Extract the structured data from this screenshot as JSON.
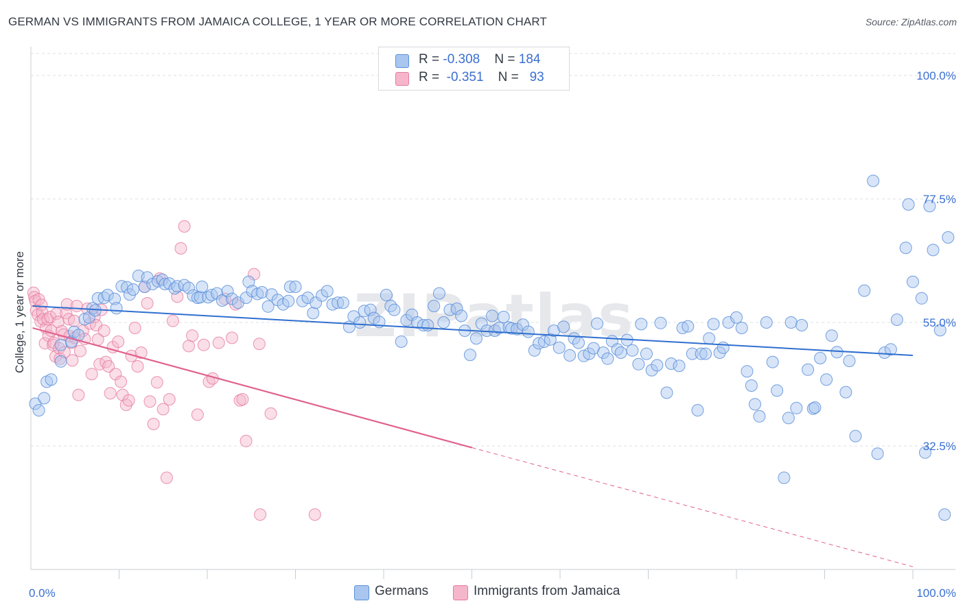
{
  "title": "GERMAN VS IMMIGRANTS FROM JAMAICA COLLEGE, 1 YEAR OR MORE CORRELATION CHART",
  "source": "Source: ZipAtlas.com",
  "watermark": "ZIPatlas",
  "colors": {
    "germans_fill": "#a9c6ef",
    "germans_stroke": "#5b8fd9",
    "germans_line": "#2f6fcf",
    "jamaica_fill": "#f5b6cb",
    "jamaica_stroke": "#e6799e",
    "jamaica_line": "#e0608d",
    "axis_label": "#3a6fd1",
    "grid": "#dcdfe4"
  },
  "legend_top": {
    "germans": {
      "r_label": "R = ",
      "r_value": "-0.308",
      "n_label": "N = ",
      "n_value": "184"
    },
    "jamaica": {
      "r_label": "R = ",
      "r_value": "-0.351",
      "n_label": "N = ",
      "n_value": "93"
    }
  },
  "legend_bottom": {
    "germans": "Germans",
    "jamaica": "Immigrants from Jamaica"
  },
  "chart_data": {
    "type": "scatter",
    "title": "GERMAN VS IMMIGRANTS FROM JAMAICA COLLEGE, 1 YEAR OR MORE CORRELATION CHART",
    "xlabel": "",
    "ylabel": "College, 1 year or more",
    "xlim": [
      0,
      100
    ],
    "ylim": [
      10,
      104
    ],
    "x_tick_labels": [
      "0.0%",
      "100.0%"
    ],
    "y_ticks": [
      32.5,
      55.0,
      77.5,
      100.0
    ],
    "y_tick_labels": [
      "32.5%",
      "55.0%",
      "77.5%",
      "100.0%"
    ],
    "grid": true,
    "legend_position": "bottom",
    "series": [
      {
        "name": "Germans",
        "R": -0.308,
        "N": 184,
        "trend": {
          "x0": 0.2,
          "y0": 58.0,
          "x1": 100,
          "y1": 49.0
        },
        "points": [
          [
            0.5,
            40.2
          ],
          [
            0.9,
            39.0
          ],
          [
            1.5,
            41.2
          ],
          [
            1.8,
            44.2
          ],
          [
            2.3,
            44.6
          ],
          [
            3.4,
            47.9
          ],
          [
            3.4,
            50.9
          ],
          [
            4.6,
            51.5
          ],
          [
            4.9,
            53.3
          ],
          [
            5.4,
            52.7
          ],
          [
            6.1,
            55.6
          ],
          [
            6.6,
            55.9
          ],
          [
            7.0,
            57.6
          ],
          [
            7.3,
            57.2
          ],
          [
            7.6,
            59.4
          ],
          [
            8.3,
            59.5
          ],
          [
            8.7,
            60.0
          ],
          [
            9.5,
            59.3
          ],
          [
            9.7,
            57.6
          ],
          [
            10.3,
            61.6
          ],
          [
            10.9,
            61.4
          ],
          [
            11.2,
            60.1
          ],
          [
            11.6,
            61.0
          ],
          [
            12.2,
            63.5
          ],
          [
            12.9,
            61.5
          ],
          [
            13.2,
            63.2
          ],
          [
            13.8,
            62.0
          ],
          [
            14.4,
            62.5
          ],
          [
            14.9,
            62.8
          ],
          [
            15.2,
            62.0
          ],
          [
            15.7,
            62.1
          ],
          [
            16.3,
            61.2
          ],
          [
            16.6,
            61.6
          ],
          [
            17.4,
            61.8
          ],
          [
            17.9,
            61.3
          ],
          [
            18.4,
            59.9
          ],
          [
            18.9,
            59.5
          ],
          [
            19.2,
            59.6
          ],
          [
            19.4,
            61.5
          ],
          [
            20.1,
            59.6
          ],
          [
            20.5,
            60.0
          ],
          [
            21.1,
            60.3
          ],
          [
            21.7,
            59.0
          ],
          [
            22.3,
            60.7
          ],
          [
            22.8,
            59.3
          ],
          [
            23.5,
            58.6
          ],
          [
            24.4,
            59.5
          ],
          [
            24.7,
            62.4
          ],
          [
            25.1,
            60.7
          ],
          [
            25.7,
            60.2
          ],
          [
            26.2,
            60.5
          ],
          [
            26.9,
            57.9
          ],
          [
            27.3,
            60.1
          ],
          [
            28.0,
            59.1
          ],
          [
            28.6,
            58.3
          ],
          [
            29.2,
            58.9
          ],
          [
            29.4,
            61.5
          ],
          [
            30.0,
            61.5
          ],
          [
            30.8,
            58.9
          ],
          [
            31.4,
            59.5
          ],
          [
            32.0,
            56.7
          ],
          [
            32.3,
            58.6
          ],
          [
            33.0,
            59.9
          ],
          [
            33.6,
            60.7
          ],
          [
            34.2,
            58.3
          ],
          [
            34.8,
            58.6
          ],
          [
            35.4,
            58.6
          ],
          [
            36.1,
            54.2
          ],
          [
            36.6,
            56.1
          ],
          [
            37.3,
            55.0
          ],
          [
            37.8,
            57.1
          ],
          [
            38.5,
            57.3
          ],
          [
            38.9,
            55.8
          ],
          [
            39.5,
            55.1
          ],
          [
            40.3,
            60.0
          ],
          [
            40.8,
            58.0
          ],
          [
            41.2,
            57.3
          ],
          [
            42.0,
            51.5
          ],
          [
            42.6,
            55.4
          ],
          [
            43.2,
            56.4
          ],
          [
            43.8,
            55.0
          ],
          [
            44.5,
            54.5
          ],
          [
            45.0,
            54.5
          ],
          [
            45.7,
            58.0
          ],
          [
            46.3,
            60.3
          ],
          [
            46.8,
            55.0
          ],
          [
            47.5,
            57.3
          ],
          [
            48.3,
            57.5
          ],
          [
            48.8,
            56.2
          ],
          [
            49.2,
            53.5
          ],
          [
            49.8,
            49.1
          ],
          [
            50.5,
            52.1
          ],
          [
            51.1,
            54.8
          ],
          [
            51.7,
            53.5
          ],
          [
            52.3,
            56.2
          ],
          [
            52.6,
            53.5
          ],
          [
            53.1,
            54.0
          ],
          [
            53.6,
            56.0
          ],
          [
            54.2,
            54.1
          ],
          [
            54.5,
            53.9
          ],
          [
            55.1,
            53.8
          ],
          [
            55.8,
            54.6
          ],
          [
            56.4,
            53.3
          ],
          [
            57.1,
            49.9
          ],
          [
            57.6,
            51.2
          ],
          [
            58.2,
            51.5
          ],
          [
            58.9,
            51.9
          ],
          [
            59.3,
            53.5
          ],
          [
            59.9,
            50.4
          ],
          [
            60.4,
            54.2
          ],
          [
            61.1,
            49.0
          ],
          [
            61.6,
            52.1
          ],
          [
            62.1,
            51.3
          ],
          [
            62.7,
            48.9
          ],
          [
            63.3,
            49.3
          ],
          [
            63.8,
            50.3
          ],
          [
            64.2,
            54.8
          ],
          [
            64.9,
            49.5
          ],
          [
            65.4,
            48.4
          ],
          [
            65.9,
            51.6
          ],
          [
            66.5,
            50.1
          ],
          [
            66.9,
            49.5
          ],
          [
            67.6,
            51.8
          ],
          [
            68.2,
            49.9
          ],
          [
            68.9,
            47.4
          ],
          [
            69.2,
            54.7
          ],
          [
            69.8,
            49.3
          ],
          [
            70.4,
            46.3
          ],
          [
            71.0,
            47.2
          ],
          [
            71.4,
            54.9
          ],
          [
            72.1,
            42.2
          ],
          [
            72.6,
            47.5
          ],
          [
            73.5,
            47.1
          ],
          [
            73.9,
            54.0
          ],
          [
            74.5,
            54.3
          ],
          [
            75.0,
            49.3
          ],
          [
            75.6,
            39.0
          ],
          [
            76.0,
            49.3
          ],
          [
            76.5,
            49.3
          ],
          [
            76.9,
            52.1
          ],
          [
            77.4,
            54.7
          ],
          [
            78.1,
            49.5
          ],
          [
            78.5,
            50.4
          ],
          [
            79.1,
            55.0
          ],
          [
            80.0,
            55.9
          ],
          [
            80.6,
            54.0
          ],
          [
            81.2,
            46.1
          ],
          [
            81.7,
            43.5
          ],
          [
            82.1,
            40.1
          ],
          [
            82.6,
            37.9
          ],
          [
            83.4,
            55.0
          ],
          [
            84.1,
            47.8
          ],
          [
            84.6,
            42.6
          ],
          [
            85.4,
            26.7
          ],
          [
            85.9,
            37.6
          ],
          [
            86.2,
            55.0
          ],
          [
            86.8,
            39.4
          ],
          [
            87.4,
            54.5
          ],
          [
            88.1,
            46.4
          ],
          [
            88.7,
            39.3
          ],
          [
            88.9,
            39.5
          ],
          [
            89.5,
            48.5
          ],
          [
            90.2,
            44.6
          ],
          [
            90.8,
            52.6
          ],
          [
            91.4,
            49.6
          ],
          [
            92.4,
            42.3
          ],
          [
            92.8,
            48.0
          ],
          [
            93.5,
            34.3
          ],
          [
            94.5,
            60.8
          ],
          [
            95.5,
            80.8
          ],
          [
            96.0,
            31.1
          ],
          [
            96.8,
            49.5
          ],
          [
            97.5,
            50.1
          ],
          [
            98.2,
            55.5
          ],
          [
            99.2,
            68.6
          ],
          [
            99.5,
            76.5
          ],
          [
            100.0,
            62.4
          ],
          [
            101.0,
            59.4
          ],
          [
            101.4,
            31.3
          ],
          [
            101.9,
            76.2
          ],
          [
            102.3,
            68.2
          ],
          [
            103.1,
            53.6
          ],
          [
            103.6,
            20.0
          ],
          [
            104.0,
            70.5
          ]
        ]
      },
      {
        "name": "Immigrants from Jamaica",
        "R": -0.351,
        "N": 93,
        "trend": {
          "x0": 0.2,
          "y0": 54.0,
          "x1": 50,
          "y1": 32.2,
          "dashed_to": {
            "x": 100,
            "y": 10.5
          }
        },
        "points": [
          [
            0.3,
            60.4
          ],
          [
            0.4,
            59.6
          ],
          [
            0.5,
            58.9
          ],
          [
            0.6,
            57.2
          ],
          [
            0.8,
            56.4
          ],
          [
            0.9,
            59.2
          ],
          [
            1.1,
            55.2
          ],
          [
            1.2,
            58.2
          ],
          [
            1.3,
            56.8
          ],
          [
            1.4,
            55.6
          ],
          [
            1.6,
            51.2
          ],
          [
            1.7,
            54.0
          ],
          [
            1.9,
            55.6
          ],
          [
            2.0,
            52.6
          ],
          [
            2.2,
            56.0
          ],
          [
            2.3,
            53.5
          ],
          [
            2.5,
            50.9
          ],
          [
            2.6,
            51.3
          ],
          [
            2.8,
            48.8
          ],
          [
            2.9,
            56.6
          ],
          [
            3.1,
            55.1
          ],
          [
            3.2,
            50.3
          ],
          [
            3.3,
            48.4
          ],
          [
            3.5,
            53.4
          ],
          [
            3.7,
            52.8
          ],
          [
            3.8,
            49.6
          ],
          [
            4.0,
            56.7
          ],
          [
            4.1,
            58.3
          ],
          [
            4.3,
            55.6
          ],
          [
            4.4,
            52.5
          ],
          [
            4.6,
            51.3
          ],
          [
            4.7,
            48.1
          ],
          [
            4.9,
            55.3
          ],
          [
            5.0,
            52.2
          ],
          [
            5.2,
            58.0
          ],
          [
            5.4,
            41.8
          ],
          [
            5.6,
            49.8
          ],
          [
            5.9,
            53.5
          ],
          [
            6.1,
            52.0
          ],
          [
            6.4,
            57.5
          ],
          [
            6.7,
            54.8
          ],
          [
            6.9,
            45.6
          ],
          [
            7.2,
            56.0
          ],
          [
            7.4,
            54.5
          ],
          [
            7.6,
            51.9
          ],
          [
            7.8,
            47.4
          ],
          [
            8.0,
            57.3
          ],
          [
            8.3,
            53.5
          ],
          [
            8.5,
            47.8
          ],
          [
            8.8,
            47.0
          ],
          [
            9.0,
            42.1
          ],
          [
            9.3,
            50.5
          ],
          [
            9.6,
            45.6
          ],
          [
            9.9,
            51.5
          ],
          [
            10.2,
            44.2
          ],
          [
            10.4,
            41.8
          ],
          [
            10.8,
            40.0
          ],
          [
            11.1,
            40.8
          ],
          [
            11.4,
            48.9
          ],
          [
            11.8,
            54.0
          ],
          [
            12.1,
            47.0
          ],
          [
            12.5,
            49.5
          ],
          [
            12.9,
            61.5
          ],
          [
            13.2,
            58.5
          ],
          [
            13.5,
            40.6
          ],
          [
            13.9,
            36.5
          ],
          [
            14.3,
            44.1
          ],
          [
            14.6,
            63.0
          ],
          [
            15.0,
            39.2
          ],
          [
            15.4,
            26.7
          ],
          [
            15.7,
            41.0
          ],
          [
            16.1,
            55.3
          ],
          [
            16.6,
            59.7
          ],
          [
            17.0,
            68.5
          ],
          [
            17.4,
            72.5
          ],
          [
            17.9,
            50.7
          ],
          [
            18.3,
            52.6
          ],
          [
            18.9,
            38.2
          ],
          [
            19.6,
            50.9
          ],
          [
            20.2,
            44.2
          ],
          [
            20.6,
            44.8
          ],
          [
            21.3,
            51.3
          ],
          [
            22.0,
            59.3
          ],
          [
            22.8,
            52.2
          ],
          [
            23.2,
            58.3
          ],
          [
            23.7,
            40.8
          ],
          [
            24.0,
            41.0
          ],
          [
            24.4,
            33.4
          ],
          [
            25.3,
            63.8
          ],
          [
            25.9,
            51.1
          ],
          [
            26.0,
            20.0
          ],
          [
            27.2,
            38.4
          ],
          [
            32.2,
            20.0
          ]
        ]
      }
    ]
  }
}
